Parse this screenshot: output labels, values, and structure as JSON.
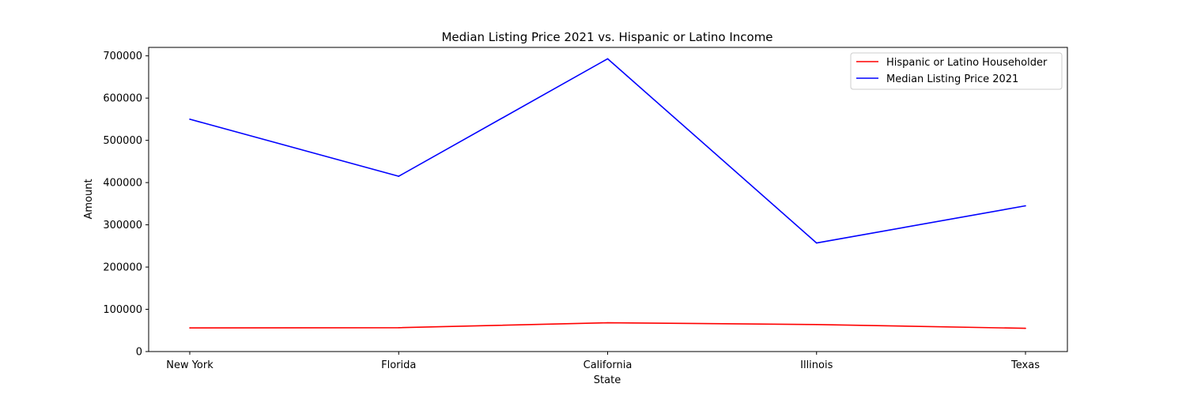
{
  "chart_data": {
    "type": "line",
    "title": "Median Listing Price 2021 vs. Hispanic or Latino Income",
    "xlabel": "State",
    "ylabel": "Amount",
    "categories": [
      "New York",
      "Florida",
      "California",
      "Illinois",
      "Texas"
    ],
    "ylim": [
      0,
      720000
    ],
    "yticks": [
      0,
      100000,
      200000,
      300000,
      400000,
      500000,
      600000,
      700000
    ],
    "ytick_labels": [
      "0",
      "100000",
      "200000",
      "300000",
      "400000",
      "500000",
      "600000",
      "700000"
    ],
    "grid": false,
    "legend_position": "top-right",
    "series": [
      {
        "name": "Hispanic or Latino Householder",
        "color": "#ff0000",
        "values": [
          56000,
          56500,
          68000,
          64000,
          55000
        ]
      },
      {
        "name": "Median Listing Price 2021",
        "color": "#0000ff",
        "values": [
          550000,
          415000,
          693000,
          257000,
          345000
        ]
      }
    ]
  }
}
